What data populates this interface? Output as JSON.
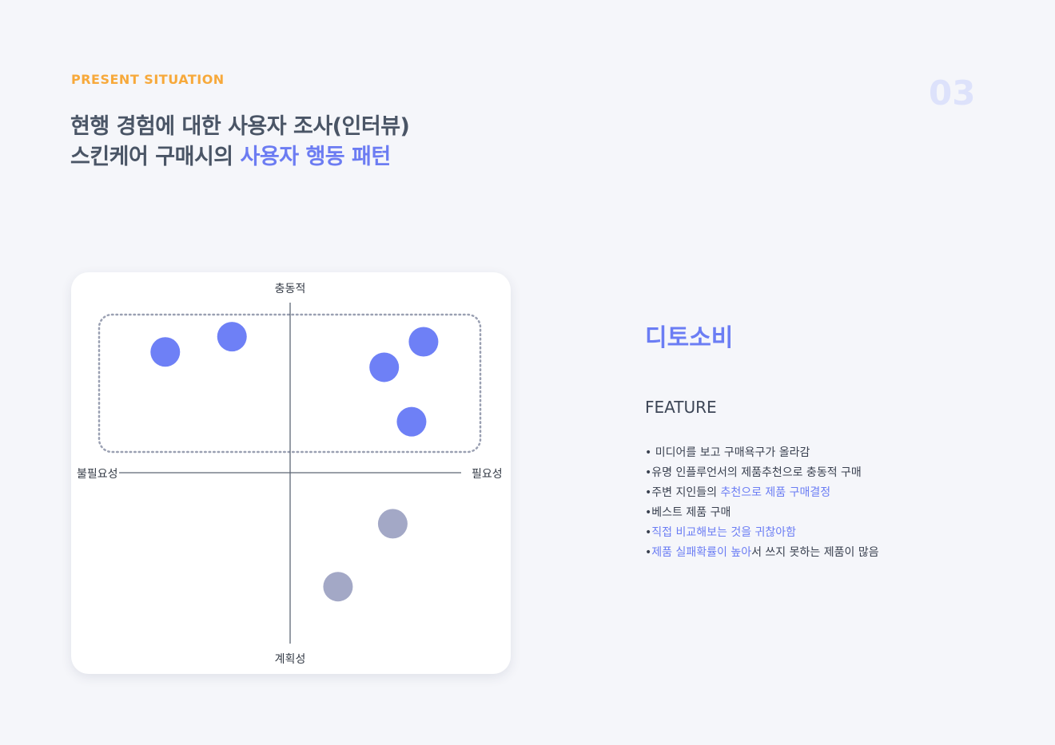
{
  "header": {
    "eyebrow": "PRESENT  SITUATION",
    "page_number": "03",
    "title_line1": "현행 경험에 대한 사용자 조사(인터뷰)",
    "title_line2_plain": "스킨케어 구매시의 ",
    "title_line2_highlight": "사용자 행동 패턴"
  },
  "matrix": {
    "top_label": "충동적",
    "bottom_label": "계획성",
    "left_label": "불필요성",
    "right_label": "필요성",
    "group_color": "#6e80f6",
    "other_color": "#a3a8c6",
    "points": [
      {
        "x": -0.73,
        "y": 0.71,
        "group": "highlight"
      },
      {
        "x": -0.34,
        "y": 0.8,
        "group": "highlight"
      },
      {
        "x": 0.55,
        "y": 0.62,
        "group": "highlight"
      },
      {
        "x": 0.78,
        "y": 0.77,
        "group": "highlight"
      },
      {
        "x": 0.71,
        "y": 0.3,
        "group": "highlight"
      },
      {
        "x": 0.6,
        "y": -0.3,
        "group": "other"
      },
      {
        "x": 0.28,
        "y": -0.67,
        "group": "other"
      }
    ]
  },
  "persona": {
    "name": "디토소비",
    "feature_heading": "FEATURE",
    "features": [
      {
        "bullet": "• ",
        "plain": "미디어를 보고 구매욕구가 올라감",
        "highlight": "",
        "suffix": ""
      },
      {
        "bullet": "•",
        "plain": "유명 인플루언서의 제품추천으로 충동적 구매",
        "highlight": "",
        "suffix": ""
      },
      {
        "bullet": "•",
        "plain": "주변 지인들의 ",
        "highlight": "추천으로 제품 구매결정",
        "suffix": ""
      },
      {
        "bullet": "•",
        "plain": "베스트 제품 구매",
        "highlight": "",
        "suffix": ""
      },
      {
        "bullet": "•",
        "plain": "",
        "highlight": "직접 비교해보는 것을 귀찮아함",
        "suffix": ""
      },
      {
        "bullet": "•",
        "plain": "",
        "highlight": "제품 실패확률이 높아",
        "suffix": "서 쓰지 못하는 제품이 많음"
      }
    ]
  }
}
